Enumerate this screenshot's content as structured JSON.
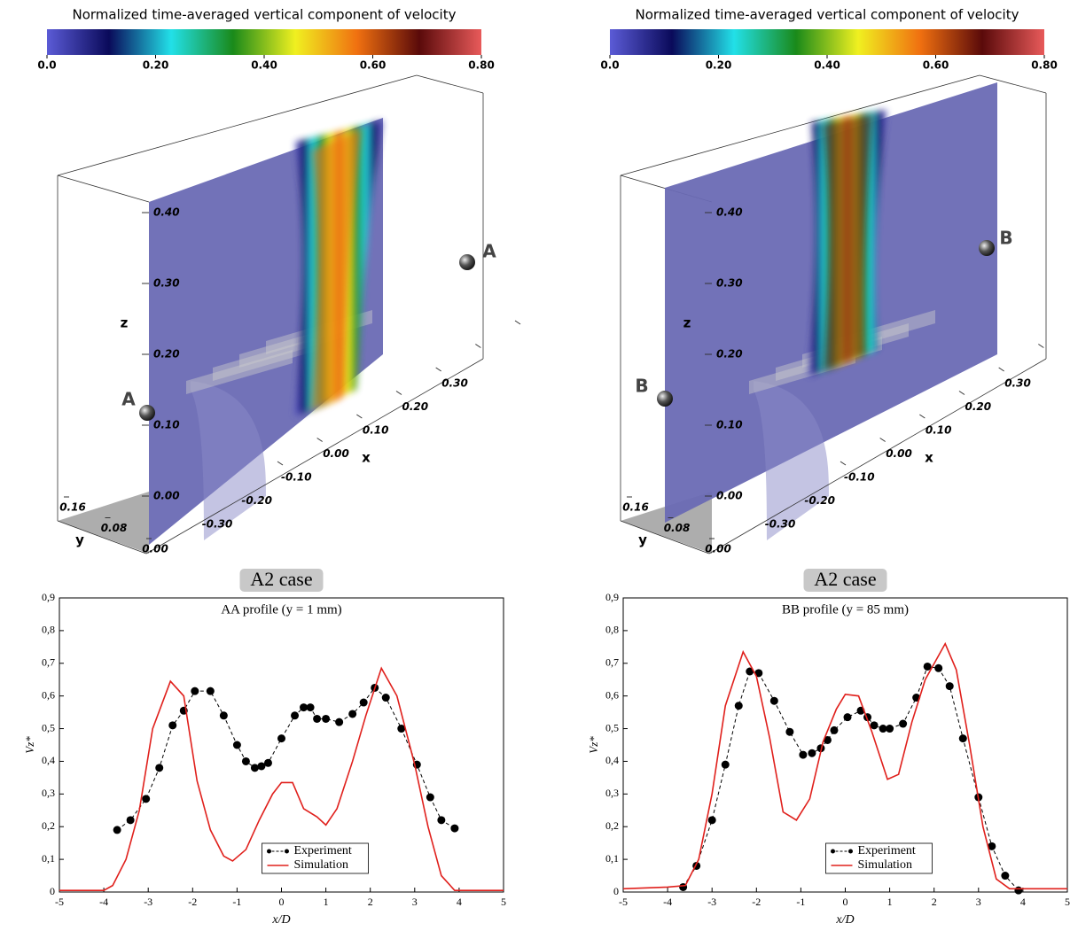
{
  "chart_data": [
    {
      "type": "field3d",
      "colorbar": {
        "title": "Normalized time-averaged vertical component of velocity",
        "lim": [
          0,
          0.8
        ],
        "ticks": [
          {
            "value": 0,
            "label": "0.0"
          },
          {
            "value": 0.2,
            "label": "0.20"
          },
          {
            "value": 0.4,
            "label": "0.40"
          },
          {
            "value": 0.6,
            "label": "0.60"
          },
          {
            "value": 0.8,
            "label": "0.80"
          }
        ],
        "colors": [
          "#5b5bd6",
          "#0a0a5a",
          "#22e0e8",
          "#1a8a1a",
          "#f0f020",
          "#f07010",
          "#5a0a0a",
          "#e85a5a"
        ]
      },
      "zlabel": "z",
      "xlabel": "x",
      "ylabel": "y",
      "zlim": [
        0,
        0.4
      ],
      "zticks": [
        {
          "value": 0,
          "label": "0.00"
        },
        {
          "value": 0.1,
          "label": "0.10"
        },
        {
          "value": 0.2,
          "label": "0.20"
        },
        {
          "value": 0.3,
          "label": "0.30"
        },
        {
          "value": 0.4,
          "label": "0.40"
        }
      ],
      "xlim": [
        -0.3,
        0.3
      ],
      "xticks": [
        {
          "value": -0.3,
          "label": "-0.30"
        },
        {
          "value": -0.2,
          "label": "-0.20"
        },
        {
          "value": -0.1,
          "label": "-0.10"
        },
        {
          "value": 0,
          "label": "0.00"
        },
        {
          "value": 0.1,
          "label": "0.10"
        },
        {
          "value": 0.2,
          "label": "0.20"
        },
        {
          "value": 0.3,
          "label": "0.30"
        }
      ],
      "ylim": [
        0,
        0.16
      ],
      "yticks": [
        {
          "value": 0,
          "label": "0.00"
        },
        {
          "value": 0.08,
          "label": "0.08"
        },
        {
          "value": 0.16,
          "label": "0.16"
        }
      ],
      "markers": [
        "A",
        "A"
      ]
    },
    {
      "type": "field3d",
      "colorbar": {
        "title": "Normalized time-averaged vertical component of velocity",
        "lim": [
          0,
          0.8
        ],
        "ticks": [
          {
            "value": 0,
            "label": "0.0"
          },
          {
            "value": 0.2,
            "label": "0.20"
          },
          {
            "value": 0.4,
            "label": "0.40"
          },
          {
            "value": 0.6,
            "label": "0.60"
          },
          {
            "value": 0.8,
            "label": "0.80"
          }
        ],
        "colors": [
          "#5b5bd6",
          "#0a0a5a",
          "#22e0e8",
          "#1a8a1a",
          "#f0f020",
          "#f07010",
          "#5a0a0a",
          "#e85a5a"
        ]
      },
      "zlabel": "z",
      "xlabel": "x",
      "ylabel": "y",
      "zlim": [
        0,
        0.4
      ],
      "zticks": [
        {
          "value": 0,
          "label": "0.00"
        },
        {
          "value": 0.1,
          "label": "0.10"
        },
        {
          "value": 0.2,
          "label": "0.20"
        },
        {
          "value": 0.3,
          "label": "0.30"
        },
        {
          "value": 0.4,
          "label": "0.40"
        }
      ],
      "xlim": [
        -0.3,
        0.3
      ],
      "xticks": [
        {
          "value": -0.3,
          "label": "-0.30"
        },
        {
          "value": -0.2,
          "label": "-0.20"
        },
        {
          "value": -0.1,
          "label": "-0.10"
        },
        {
          "value": 0,
          "label": "0.00"
        },
        {
          "value": 0.1,
          "label": "0.10"
        },
        {
          "value": 0.2,
          "label": "0.20"
        },
        {
          "value": 0.3,
          "label": "0.30"
        }
      ],
      "ylim": [
        0,
        0.16
      ],
      "yticks": [
        {
          "value": 0,
          "label": "0.00"
        },
        {
          "value": 0.08,
          "label": "0.08"
        },
        {
          "value": 0.16,
          "label": "0.16"
        }
      ],
      "markers": [
        "B",
        "B"
      ]
    },
    {
      "type": "line",
      "title": "A2 case",
      "subtitle": "AA profile (y = 1 mm)",
      "xlabel": "x/D",
      "ylabel": "Vz*",
      "xlim": [
        -5,
        5
      ],
      "ylim": [
        0,
        0.9
      ],
      "xticks": [
        -5,
        -4,
        -3,
        -2,
        -1,
        0,
        1,
        2,
        3,
        4,
        5
      ],
      "yticks": [
        0,
        {
          "value": 0.1,
          "label": "0,1"
        },
        {
          "value": 0.2,
          "label": "0,2"
        },
        {
          "value": 0.3,
          "label": "0,3"
        },
        {
          "value": 0.4,
          "label": "0,4"
        },
        {
          "value": 0.5,
          "label": "0,5"
        },
        {
          "value": 0.6,
          "label": "0,6"
        },
        {
          "value": 0.7,
          "label": "0,7"
        },
        {
          "value": 0.8,
          "label": "0,8"
        },
        {
          "value": 0.9,
          "label": "0,9"
        }
      ],
      "series": [
        {
          "name": "Experiment",
          "color": "#000000",
          "x": [
            -3.7,
            -3.4,
            -3.05,
            -2.75,
            -2.45,
            -2.2,
            -1.95,
            -1.6,
            -1.3,
            -1.0,
            -0.8,
            -0.6,
            -0.45,
            -0.3,
            0.0,
            0.3,
            0.5,
            0.65,
            0.8,
            1.0,
            1.3,
            1.6,
            1.85,
            2.1,
            2.35,
            2.7,
            3.05,
            3.35,
            3.6,
            3.9
          ],
          "values": [
            0.19,
            0.22,
            0.285,
            0.38,
            0.51,
            0.555,
            0.615,
            0.615,
            0.54,
            0.45,
            0.4,
            0.38,
            0.385,
            0.395,
            0.47,
            0.54,
            0.565,
            0.565,
            0.53,
            0.53,
            0.52,
            0.545,
            0.58,
            0.625,
            0.595,
            0.5,
            0.39,
            0.29,
            0.22,
            0.195
          ]
        },
        {
          "name": "Simulation",
          "color": "#e0201c",
          "x": [
            -5,
            -4,
            -3.8,
            -3.5,
            -3.2,
            -2.9,
            -2.5,
            -2.2,
            -1.9,
            -1.6,
            -1.3,
            -1.1,
            -0.8,
            -0.5,
            -0.2,
            0.0,
            0.25,
            0.5,
            0.8,
            1.0,
            1.25,
            1.6,
            1.9,
            2.25,
            2.6,
            3.0,
            3.3,
            3.6,
            3.9,
            5
          ],
          "values": [
            0.005,
            0.005,
            0.02,
            0.1,
            0.25,
            0.5,
            0.645,
            0.6,
            0.34,
            0.19,
            0.11,
            0.095,
            0.13,
            0.22,
            0.3,
            0.335,
            0.335,
            0.255,
            0.23,
            0.205,
            0.255,
            0.4,
            0.54,
            0.685,
            0.6,
            0.39,
            0.2,
            0.05,
            0.005,
            0.005
          ]
        }
      ]
    },
    {
      "type": "line",
      "title": "A2 case",
      "subtitle": "BB profile (y = 85 mm)",
      "xlabel": "x/D",
      "ylabel": "Vz*",
      "xlim": [
        -5,
        5
      ],
      "ylim": [
        0,
        0.9
      ],
      "xticks": [
        -5,
        -4,
        -3,
        -2,
        -1,
        0,
        1,
        2,
        3,
        4,
        5
      ],
      "yticks": [
        0,
        {
          "value": 0.1,
          "label": "0,1"
        },
        {
          "value": 0.2,
          "label": "0,2"
        },
        {
          "value": 0.3,
          "label": "0,3"
        },
        {
          "value": 0.4,
          "label": "0,4"
        },
        {
          "value": 0.5,
          "label": "0,5"
        },
        {
          "value": 0.6,
          "label": "0,6"
        },
        {
          "value": 0.7,
          "label": "0,7"
        },
        {
          "value": 0.8,
          "label": "0,8"
        },
        {
          "value": 0.9,
          "label": "0,9"
        }
      ],
      "series": [
        {
          "name": "Experiment",
          "color": "#000000",
          "x": [
            -3.65,
            -3.35,
            -3.0,
            -2.7,
            -2.4,
            -2.15,
            -1.95,
            -1.6,
            -1.25,
            -0.95,
            -0.75,
            -0.55,
            -0.4,
            -0.25,
            0.05,
            0.35,
            0.5,
            0.65,
            0.85,
            1.0,
            1.3,
            1.6,
            1.85,
            2.1,
            2.35,
            2.65,
            3.0,
            3.3,
            3.6,
            3.9
          ],
          "values": [
            0.015,
            0.08,
            0.22,
            0.39,
            0.57,
            0.675,
            0.67,
            0.585,
            0.49,
            0.42,
            0.425,
            0.44,
            0.465,
            0.495,
            0.535,
            0.555,
            0.535,
            0.51,
            0.5,
            0.5,
            0.515,
            0.595,
            0.69,
            0.685,
            0.63,
            0.47,
            0.29,
            0.14,
            0.05,
            0.005
          ]
        },
        {
          "name": "Simulation",
          "color": "#e0201c",
          "x": [
            -5,
            -4,
            -3.6,
            -3.3,
            -3.0,
            -2.7,
            -2.3,
            -2.0,
            -1.7,
            -1.4,
            -1.1,
            -0.8,
            -0.5,
            -0.2,
            0.0,
            0.3,
            0.6,
            0.95,
            1.2,
            1.5,
            1.8,
            2.25,
            2.5,
            2.8,
            3.1,
            3.4,
            3.7,
            5
          ],
          "values": [
            0.01,
            0.015,
            0.02,
            0.1,
            0.3,
            0.57,
            0.735,
            0.66,
            0.47,
            0.245,
            0.22,
            0.285,
            0.46,
            0.56,
            0.605,
            0.6,
            0.49,
            0.345,
            0.36,
            0.52,
            0.65,
            0.76,
            0.68,
            0.45,
            0.2,
            0.04,
            0.01,
            0.01
          ]
        }
      ]
    }
  ]
}
